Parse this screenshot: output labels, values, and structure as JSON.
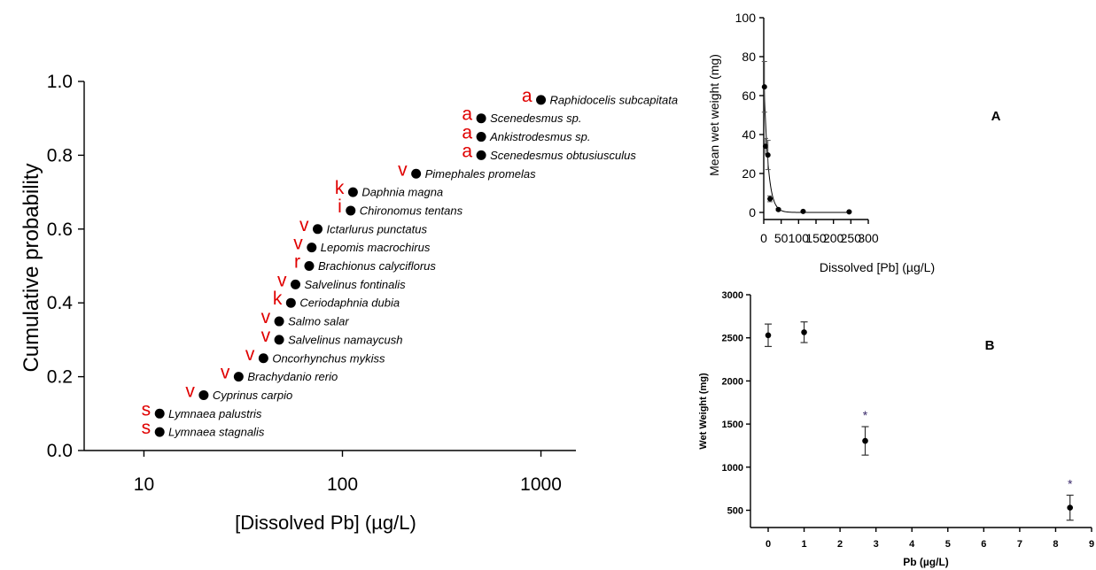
{
  "chart_data": [
    {
      "type": "scatter",
      "xlabel": "[Dissolved Pb]  (µg/L)",
      "ylabel": "Cumulative probability",
      "x_scale": "log",
      "xlim": [
        5,
        1500
      ],
      "ylim": [
        0,
        1.0
      ],
      "x_ticks": [
        "10",
        "100",
        "1000"
      ],
      "y_ticks": [
        "0.0",
        "0.2",
        "0.4",
        "0.6",
        "0.8",
        "1.0"
      ],
      "points": [
        {
          "species": "Raphidocelis subcapitata",
          "group": "a",
          "x": 1000,
          "y": 0.95
        },
        {
          "species": "Scenedesmus sp.",
          "group": "a",
          "x": 500,
          "y": 0.9
        },
        {
          "species": "Ankistrodesmus sp.",
          "group": "a",
          "x": 500,
          "y": 0.85
        },
        {
          "species": "Scenedesmus obtusiusculus",
          "group": "a",
          "x": 500,
          "y": 0.8
        },
        {
          "species": "Pimephales promelas",
          "group": "v",
          "x": 235,
          "y": 0.75
        },
        {
          "species": "Daphnia magna",
          "group": "k",
          "x": 113,
          "y": 0.7
        },
        {
          "species": "Chironomus tentans",
          "group": "i",
          "x": 110,
          "y": 0.65
        },
        {
          "species": "Ictarlurus punctatus",
          "group": "v",
          "x": 75,
          "y": 0.6
        },
        {
          "species": "Lepomis macrochirus",
          "group": "v",
          "x": 70,
          "y": 0.55
        },
        {
          "species": "Brachionus calyciflorus",
          "group": "r",
          "x": 68,
          "y": 0.5
        },
        {
          "species": "Salvelinus fontinalis",
          "group": "v",
          "x": 58,
          "y": 0.45
        },
        {
          "species": "Ceriodaphnia dubia",
          "group": "k",
          "x": 55,
          "y": 0.4
        },
        {
          "species": "Salmo salar",
          "group": "v",
          "x": 48,
          "y": 0.35
        },
        {
          "species": "Salvelinus namaycush",
          "group": "v",
          "x": 48,
          "y": 0.3
        },
        {
          "species": "Oncorhynchus mykiss",
          "group": "v",
          "x": 40,
          "y": 0.25
        },
        {
          "species": "Brachydanio rerio",
          "group": "v",
          "x": 30,
          "y": 0.2
        },
        {
          "species": "Cyprinus carpio",
          "group": "v",
          "x": 20,
          "y": 0.15
        },
        {
          "species": "Lymnaea palustris",
          "group": "s",
          "x": 12,
          "y": 0.1
        },
        {
          "species": "Lymnaea stagnalis",
          "group": "s",
          "x": 12,
          "y": 0.05
        }
      ]
    },
    {
      "type": "scatter",
      "panel_label": "A",
      "xlabel": "Dissolved [Pb] (µg/L)",
      "ylabel": "Mean wet weight (mg)",
      "xlim": [
        0,
        300
      ],
      "ylim": [
        0,
        100
      ],
      "x_ticks": [
        "0",
        "50",
        "100",
        "150",
        "200",
        "250",
        "300"
      ],
      "y_ticks": [
        "0",
        "20",
        "40",
        "60",
        "80",
        "100"
      ],
      "points": [
        {
          "x": 2,
          "y": 64.5,
          "err": 13
        },
        {
          "x": 5,
          "y": 34,
          "err": 4
        },
        {
          "x": 12,
          "y": 29.5,
          "err": 7.5
        },
        {
          "x": 18,
          "y": 7,
          "err": 1.5
        },
        {
          "x": 42,
          "y": 1.5,
          "err": 0.5
        },
        {
          "x": 113,
          "y": 0.5,
          "err": 0.3
        },
        {
          "x": 245,
          "y": 0.3,
          "err": 0.2
        }
      ],
      "fit_curve": {
        "type": "exponential_decay",
        "y0": 72,
        "k": 0.085
      }
    },
    {
      "type": "scatter",
      "panel_label": "B",
      "xlabel": "Pb (µg/L)",
      "ylabel": "Wet Weight (mg)",
      "xlim": [
        0,
        9
      ],
      "ylim": [
        300,
        3000
      ],
      "x_ticks": [
        "0",
        "1",
        "2",
        "3",
        "4",
        "5",
        "6",
        "7",
        "8",
        "9"
      ],
      "y_ticks": [
        "500",
        "1000",
        "1500",
        "2000",
        "2500",
        "3000"
      ],
      "points": [
        {
          "x": 0,
          "y": 2530,
          "err": 130,
          "sig": ""
        },
        {
          "x": 1,
          "y": 2565,
          "err": 120,
          "sig": ""
        },
        {
          "x": 2.7,
          "y": 1305,
          "err": 165,
          "sig": "*"
        },
        {
          "x": 8.4,
          "y": 530,
          "err": 145,
          "sig": "*"
        }
      ]
    }
  ]
}
